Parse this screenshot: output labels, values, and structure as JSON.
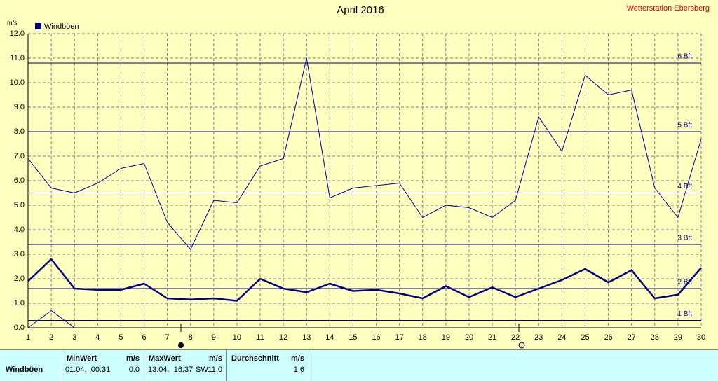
{
  "chart_data": {
    "type": "line",
    "title": "April 2016",
    "station": "Wetterstation Ebersberg",
    "y_unit": "m/s",
    "x": [
      1,
      2,
      3,
      4,
      5,
      6,
      7,
      8,
      9,
      10,
      11,
      12,
      13,
      14,
      15,
      16,
      17,
      18,
      19,
      20,
      21,
      22,
      23,
      24,
      25,
      26,
      27,
      28,
      29,
      30
    ],
    "xlim": [
      1,
      30
    ],
    "xticks": [
      1,
      2,
      3,
      4,
      5,
      6,
      7,
      8,
      9,
      10,
      11,
      12,
      13,
      14,
      15,
      16,
      17,
      18,
      19,
      20,
      21,
      22,
      23,
      24,
      25,
      26,
      27,
      28,
      29,
      30
    ],
    "ylim": [
      0,
      12
    ],
    "yticks": [
      {
        "value": 0,
        "label": "0.0"
      },
      {
        "value": 1,
        "label": "1.0"
      },
      {
        "value": 2,
        "label": "2.0"
      },
      {
        "value": 3,
        "label": "3.0"
      },
      {
        "value": 4,
        "label": "4.0"
      },
      {
        "value": 5,
        "label": "5.0"
      },
      {
        "value": 6,
        "label": "6.0"
      },
      {
        "value": 7,
        "label": "7.0"
      },
      {
        "value": 8,
        "label": "8.0"
      },
      {
        "value": 9,
        "label": "9.0"
      },
      {
        "value": 10,
        "label": "10.0"
      },
      {
        "value": 11,
        "label": "11.0"
      },
      {
        "value": 12,
        "label": "12.0"
      }
    ],
    "grid": true,
    "legend": "top-left",
    "series": [
      {
        "name": "Windböen",
        "color": "#000080",
        "width": 2.5,
        "values": [
          1.9,
          2.8,
          1.6,
          1.55,
          1.55,
          1.8,
          1.2,
          1.15,
          1.2,
          1.1,
          2.0,
          1.6,
          1.45,
          1.8,
          1.5,
          1.55,
          1.4,
          1.2,
          1.7,
          1.25,
          1.65,
          1.25,
          1.6,
          1.95,
          2.4,
          1.85,
          2.35,
          1.2,
          1.35,
          2.45
        ]
      },
      {
        "color": "#0000a0",
        "width": 1,
        "values": [
          6.9,
          5.7,
          5.5,
          5.9,
          6.5,
          6.7,
          4.3,
          3.2,
          5.2,
          5.1,
          6.6,
          6.9,
          11.0,
          5.3,
          5.7,
          5.8,
          5.9,
          4.5,
          5.0,
          4.9,
          4.5,
          5.2,
          8.6,
          7.2,
          10.3,
          9.5,
          9.7,
          5.7,
          4.5,
          7.7
        ]
      },
      {
        "color": "#0000a0",
        "width": 1,
        "values": [
          0,
          0.7,
          0,
          null,
          null,
          null,
          null,
          null,
          null,
          null,
          null,
          null,
          null,
          null,
          null,
          null,
          null,
          null,
          null,
          null,
          null,
          null,
          null,
          null,
          null,
          null,
          null,
          null,
          null,
          null
        ]
      }
    ],
    "reference_lines": [
      {
        "value": 0.3,
        "label": "1 Bft"
      },
      {
        "value": 1.6,
        "label": "2 Bft"
      },
      {
        "value": 3.4,
        "label": "3 Bft"
      },
      {
        "value": 5.5,
        "label": "4 Bft"
      },
      {
        "value": 8.0,
        "label": "5 Bft"
      },
      {
        "value": 10.8,
        "label": "6 Bft"
      }
    ]
  },
  "table": {
    "row_label": "Windböen",
    "min": {
      "title": "MinWert",
      "unit": "m/s",
      "time": "01.04.  00:31",
      "value": "0.0"
    },
    "max": {
      "title": "MaxWert",
      "unit": "m/s",
      "time": "13.04.  16:37",
      "direction": "SW",
      "value": "11.0"
    },
    "avg": {
      "title": "Durchschnitt",
      "unit": "m/s",
      "value": "1.6"
    }
  }
}
